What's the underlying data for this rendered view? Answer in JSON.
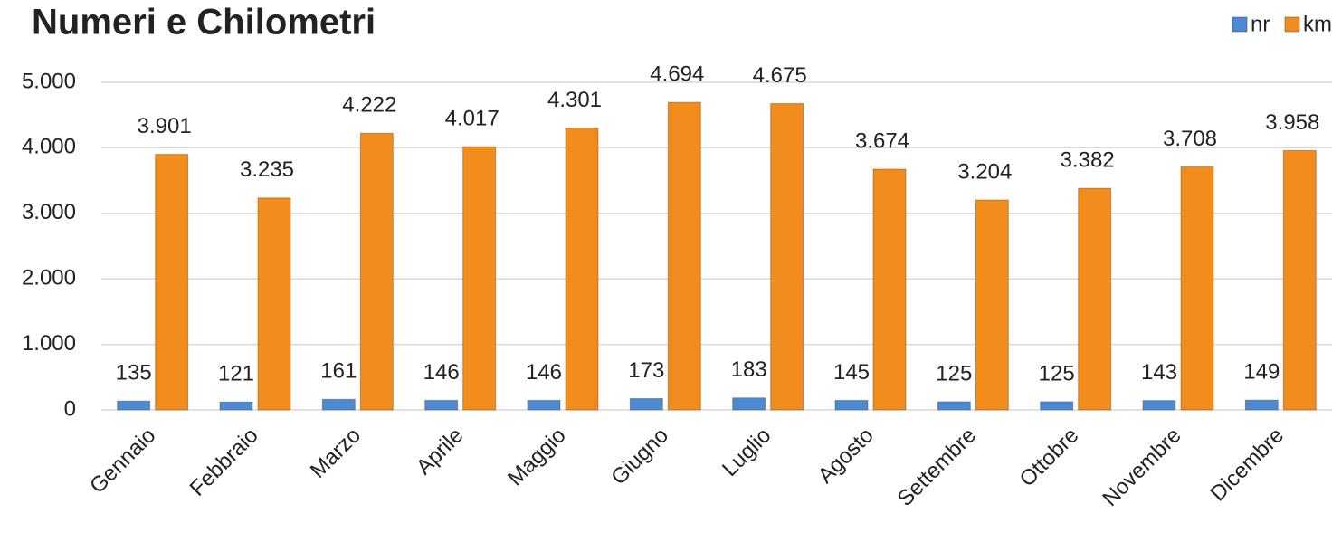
{
  "chart_data": {
    "type": "bar",
    "title": "Numeri e Chilometri",
    "categories": [
      "Gennaio",
      "Febbraio",
      "Marzo",
      "Aprile",
      "Maggio",
      "Giugno",
      "Luglio",
      "Agosto",
      "Settembre",
      "Ottobre",
      "Novembre",
      "Dicembre"
    ],
    "series": [
      {
        "name": "nr",
        "color": "#4a8ad6",
        "values": [
          135,
          121,
          161,
          146,
          146,
          173,
          183,
          145,
          125,
          125,
          143,
          149
        ]
      },
      {
        "name": "km",
        "color": "#f28c1c",
        "values": [
          3901,
          3235,
          4222,
          4017,
          4301,
          4694,
          4675,
          3674,
          3204,
          3382,
          3708,
          3958
        ],
        "value_labels": [
          "3.901",
          "3.235",
          "4.222",
          "4.017",
          "4.301",
          "4.694",
          "4.675",
          "3.674",
          "3.204",
          "3.382",
          "3.708",
          "3.958"
        ]
      }
    ],
    "ylim": [
      0,
      5000
    ],
    "yticks": [
      0,
      {
        "value": 1000,
        "label": "1.000"
      },
      {
        "value": 2000,
        "label": "2.000"
      },
      {
        "value": 3000,
        "label": "3.000"
      },
      {
        "value": 4000,
        "label": "4.000"
      },
      {
        "value": 5000,
        "label": "5.000"
      }
    ],
    "grid": true,
    "legend": "top-right"
  }
}
